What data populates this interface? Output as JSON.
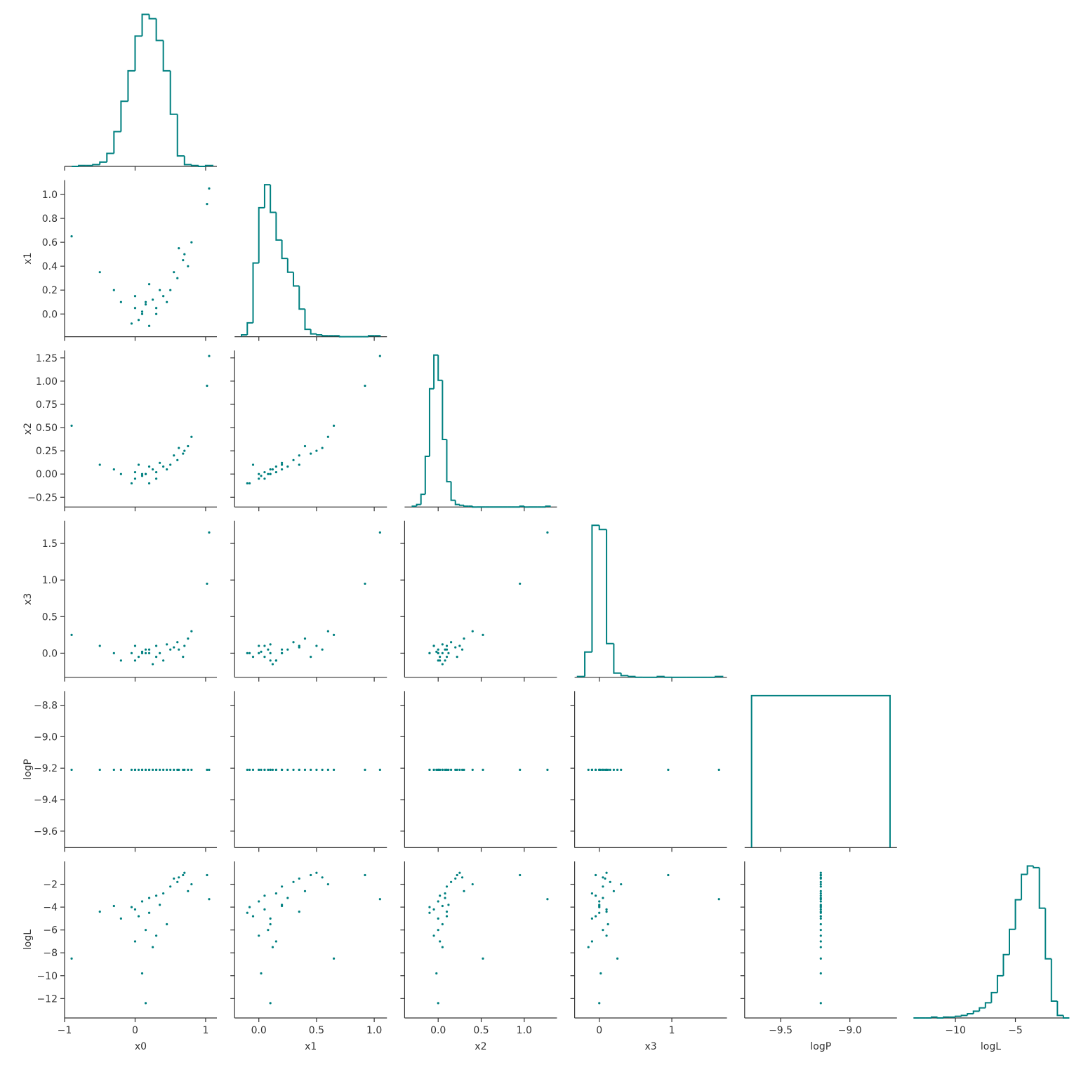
{
  "chart_data": {
    "type": "corner",
    "color": "#008080",
    "variables": [
      {
        "name": "x0",
        "xlim": [
          -1.0,
          1.16
        ],
        "xticks": [
          {
            "value": -1,
            "label": "−1"
          },
          0,
          1
        ]
      },
      {
        "name": "x1",
        "xlim": [
          -0.21,
          1.11
        ],
        "ylim": [
          -0.19,
          1.12
        ],
        "xticks": [
          {
            "value": 0,
            "label": "0.0"
          },
          0.5,
          {
            "value": 1,
            "label": "1.0"
          }
        ],
        "yticks": [
          {
            "value": 0,
            "label": "0.0"
          },
          0.2,
          0.4,
          0.6,
          0.8,
          {
            "value": 1,
            "label": "1.0"
          }
        ]
      },
      {
        "name": "x2",
        "xlim": [
          -0.39,
          1.38
        ],
        "ylim": [
          -0.355,
          1.33
        ],
        "xticks": [
          {
            "value": 0,
            "label": "0.0"
          },
          0.5,
          {
            "value": 1,
            "label": "1.0"
          }
        ],
        "yticks": [
          {
            "value": -0.25,
            "label": "−0.25"
          },
          {
            "value": 0,
            "label": "0.00"
          },
          0.25,
          {
            "value": 0.5,
            "label": "0.50"
          },
          0.75,
          {
            "value": 1,
            "label": "1.00"
          },
          1.25
        ]
      },
      {
        "name": "x3",
        "xlim": [
          -0.34,
          1.76
        ],
        "ylim": [
          -0.33,
          1.81
        ],
        "xticks": [
          0,
          1
        ],
        "yticks": [
          {
            "value": 0,
            "label": "0.0"
          },
          0.5,
          {
            "value": 1,
            "label": "1.0"
          },
          1.5
        ]
      },
      {
        "name": "logP",
        "xlim": [
          -9.76,
          -8.66
        ],
        "ylim": [
          -9.705,
          -8.71
        ],
        "xticks": [
          {
            "value": -9.5,
            "label": "−9.5"
          },
          {
            "value": -9,
            "label": "−9.0"
          }
        ],
        "yticks": [
          {
            "value": -9.6,
            "label": "−9.6"
          },
          {
            "value": -9.4,
            "label": "−9.4"
          },
          {
            "value": -9.2,
            "label": "−9.2"
          },
          {
            "value": -9,
            "label": "−9.0"
          },
          {
            "value": -8.8,
            "label": "−8.8"
          }
        ]
      },
      {
        "name": "logL",
        "xlim": [
          -13.4,
          -0.7
        ],
        "ylim": [
          -13.7,
          0
        ],
        "xticks": [
          {
            "value": -10,
            "label": "−10"
          },
          {
            "value": -5,
            "label": "−5"
          }
        ],
        "yticks": [
          {
            "value": -12,
            "label": "−12"
          },
          {
            "value": -10,
            "label": "−10"
          },
          {
            "value": -8,
            "label": "−8"
          },
          {
            "value": -6,
            "label": "−6"
          },
          {
            "value": -4,
            "label": "−4"
          },
          {
            "value": -2,
            "label": "−2"
          }
        ]
      }
    ],
    "histograms": [
      {
        "bins": [
          -0.9,
          -0.8,
          -0.7,
          -0.6,
          -0.5,
          -0.4,
          -0.3,
          -0.2,
          -0.1,
          0.0,
          0.1,
          0.2,
          0.3,
          0.4,
          0.5,
          0.6,
          0.7,
          0.8,
          0.9,
          1.0,
          1.1
        ],
        "counts": [
          0,
          1,
          1,
          2,
          5,
          15,
          40,
          75,
          110,
          150,
          175,
          170,
          145,
          110,
          60,
          12,
          2,
          1,
          0,
          1
        ]
      },
      {
        "bins": [
          -0.15,
          -0.1,
          -0.05,
          0.0,
          0.05,
          0.1,
          0.15,
          0.2,
          0.25,
          0.3,
          0.35,
          0.4,
          0.45,
          0.5,
          0.55,
          0.6,
          0.65,
          0.7,
          0.75,
          0.8,
          0.85,
          0.9,
          0.95,
          1.0,
          1.05
        ],
        "counts": [
          2,
          15,
          80,
          140,
          165,
          135,
          105,
          85,
          70,
          55,
          30,
          8,
          3,
          2,
          1,
          1,
          1,
          0,
          0,
          0,
          0,
          0,
          1,
          1
        ]
      },
      {
        "bins": [
          -0.3,
          -0.25,
          -0.2,
          -0.15,
          -0.1,
          -0.05,
          0.0,
          0.05,
          0.1,
          0.15,
          0.2,
          0.25,
          0.3,
          0.35,
          0.4,
          0.45,
          0.5,
          0.55,
          0.6,
          0.65,
          0.7,
          0.75,
          0.8,
          0.85,
          0.9,
          0.95,
          1.0,
          1.05,
          1.1,
          1.15,
          1.2,
          1.25,
          1.3
        ],
        "counts": [
          1,
          3,
          15,
          60,
          140,
          180,
          150,
          80,
          30,
          8,
          3,
          2,
          1,
          1,
          0,
          0,
          0,
          0,
          0,
          0,
          0,
          0,
          0,
          0,
          0,
          1,
          0,
          0,
          0,
          0,
          0,
          1
        ]
      },
      {
        "bins": [
          -0.3,
          -0.2,
          -0.1,
          0.0,
          0.1,
          0.2,
          0.3,
          0.4,
          0.5,
          0.6,
          0.7,
          0.8,
          0.9,
          1.0,
          1.1,
          1.2,
          1.3,
          1.4,
          1.5,
          1.6,
          1.7
        ],
        "counts": [
          1,
          30,
          180,
          175,
          40,
          5,
          2,
          1,
          0,
          0,
          0,
          1,
          0,
          0,
          0,
          0,
          0,
          0,
          0,
          1
        ]
      },
      {
        "bins": [
          -9.71,
          -8.71
        ],
        "counts": [
          1
        ]
      },
      {
        "bins": [
          -13.5,
          -13.0,
          -12.5,
          -12.0,
          -11.5,
          -11.0,
          -10.5,
          -10.0,
          -9.5,
          -9.0,
          -8.5,
          -8.0,
          -7.5,
          -7.0,
          -6.5,
          -6.0,
          -5.5,
          -5.0,
          -4.5,
          -4.0,
          -3.5,
          -3.0,
          -2.5,
          -2.0,
          -1.5,
          -1.0,
          -0.5
        ],
        "counts": [
          0,
          0,
          0,
          1,
          0,
          1,
          1,
          2,
          3,
          5,
          8,
          12,
          18,
          30,
          50,
          75,
          105,
          140,
          170,
          180,
          178,
          130,
          70,
          20,
          3,
          0
        ]
      }
    ],
    "samples": [
      [
        0.1,
        0.3,
        0.5,
        0.7,
        0.0,
        -0.2,
        0.2,
        0.6,
        0.4,
        0.15,
        -0.5,
        -0.9,
        1.05,
        1.02,
        0.8,
        0.25,
        0.1,
        0.15,
        0.35,
        0.55,
        0.05,
        0.45,
        -0.3,
        0.68,
        0.2,
        0.75,
        0.3,
        0.0,
        -0.05,
        0.62
      ],
      [
        0.0,
        0.05,
        0.2,
        0.5,
        0.05,
        0.1,
        -0.1,
        0.3,
        0.15,
        0.08,
        0.35,
        0.65,
        1.05,
        0.92,
        0.6,
        0.12,
        0.02,
        0.1,
        0.2,
        0.35,
        -0.05,
        0.1,
        0.2,
        0.45,
        0.25,
        0.4,
        0.0,
        0.15,
        -0.08,
        0.55
      ],
      [
        0.0,
        0.02,
        0.1,
        0.25,
        -0.05,
        0.0,
        -0.1,
        0.15,
        0.08,
        0.0,
        0.1,
        0.52,
        1.27,
        0.95,
        0.4,
        0.05,
        -0.02,
        0.0,
        0.12,
        0.2,
        0.1,
        0.05,
        0.05,
        0.22,
        0.08,
        0.3,
        -0.05,
        0.02,
        -0.1,
        0.28
      ],
      [
        0.0,
        -0.05,
        0.05,
        0.1,
        0.1,
        -0.1,
        0.0,
        0.15,
        -0.1,
        0.05,
        0.1,
        0.25,
        1.65,
        0.95,
        0.3,
        -0.15,
        0.02,
        0.0,
        0.0,
        0.08,
        -0.05,
        0.12,
        0.0,
        -0.05,
        0.05,
        0.2,
        0.1,
        -0.1,
        0.0,
        0.05
      ],
      [
        -9.21,
        -9.21,
        -9.21,
        -9.21,
        -9.21,
        -9.21,
        -9.21,
        -9.21,
        -9.21,
        -9.21,
        -9.21,
        -9.21,
        -9.21,
        -9.21,
        -9.21,
        -9.21,
        -9.21,
        -9.21,
        -9.21,
        -9.21,
        -9.21,
        -9.21,
        -9.21,
        -9.21,
        -9.21,
        -9.21,
        -9.21,
        -9.21,
        -9.21,
        -9.21
      ],
      [
        -3.5,
        -3.0,
        -2.2,
        -1.0,
        -4.2,
        -5.0,
        -4.5,
        -1.8,
        -2.8,
        -6.0,
        -4.4,
        -8.5,
        -3.3,
        -1.2,
        -2.0,
        -7.5,
        -9.8,
        -12.4,
        -3.8,
        -1.5,
        -4.8,
        -5.5,
        -3.9,
        -1.2,
        -3.2,
        -2.6,
        -6.5,
        -7.0,
        -4.0,
        -1.4
      ]
    ]
  }
}
